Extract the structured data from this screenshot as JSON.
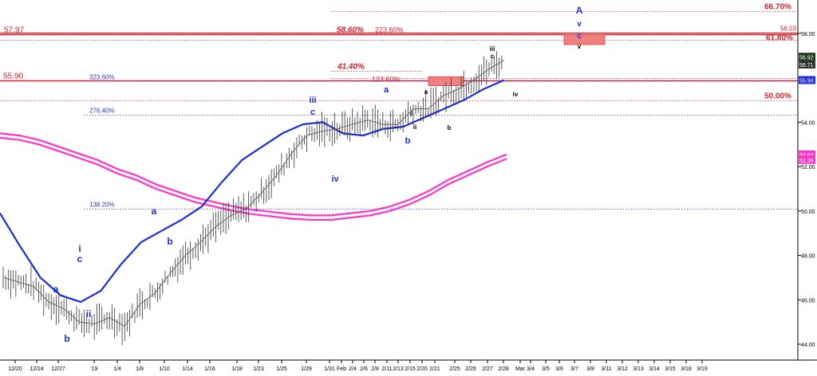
{
  "chart_data": {
    "type": "line",
    "title": "",
    "xlabel": "",
    "ylabel": "",
    "ylim": [
      43.3,
      61.4
    ],
    "x_ticks": [
      "12/20",
      "12/24",
      "12/27",
      "'19",
      "1/4",
      "1/8",
      "1/10",
      "1/14",
      "1/16",
      "1/18",
      "1/23",
      "1/25",
      "1/29",
      "1/31",
      "Feb",
      "2/4",
      "2/6",
      "2/8",
      "2/11",
      "2/13",
      "2/15",
      "2/20",
      "2/21",
      "2/25",
      "2/26",
      "2/27",
      "2/28",
      "Mar",
      "3/4",
      "3/5",
      "3/6",
      "3/7",
      "3/8",
      "3/11",
      "3/12",
      "3/13",
      "3/14",
      "3/15",
      "3/18",
      "3/19"
    ],
    "y_ticks": [
      "44.00",
      "46.00",
      "48.00",
      "50.00",
      "52.00",
      "54.00",
      "56.00",
      "58.00"
    ],
    "price_labels": {
      "last": "56.92",
      "sub": "56.71",
      "ma": "55.94",
      "slow_upper": "52.62",
      "slow_lower": "52.39"
    },
    "levels": [
      {
        "label": "57.97",
        "value": 57.97,
        "color": "#e0202a",
        "style": "solid"
      },
      {
        "label": "58.60%",
        "value": 57.97,
        "color": "#e0202a",
        "style": "dotted"
      },
      {
        "label": "223.60%",
        "value": 57.97,
        "color": "#e0202a",
        "style": "dotted"
      },
      {
        "label": "58.03",
        "value": 58.03,
        "color": "#e0202a",
        "style": "dotted"
      },
      {
        "label": "61.80%",
        "value": 57.7,
        "color": "#e0202a",
        "style": "dotted"
      },
      {
        "label": "66.70%",
        "value": 59.0,
        "color": "#e0202a",
        "style": "dotted"
      },
      {
        "label": "276.40%",
        "value": 59.9,
        "color": "#e0202a",
        "style": "dotted"
      },
      {
        "label": "41.40%",
        "value": 56.3,
        "color": "#e0202a",
        "style": "dotted"
      },
      {
        "label": "123.60%",
        "value": 56.0,
        "color": "#e0202a",
        "style": "dotted"
      },
      {
        "label": "55.90",
        "value": 55.9,
        "color": "#e0202a",
        "style": "solid"
      },
      {
        "label": "50.00%",
        "value": 55.0,
        "color": "#e0202a",
        "style": "dotted"
      },
      {
        "label": "323.60%",
        "value": 55.9,
        "color": "#3333cc",
        "style": "dotted"
      },
      {
        "label": "276.40%",
        "value": 54.35,
        "color": "#3333cc",
        "style": "dotted"
      },
      {
        "label": "138.20%",
        "value": 50.1,
        "color": "#3333cc",
        "style": "dotted"
      }
    ],
    "wave_labels": [
      "A",
      "v",
      "c",
      "v",
      "iii",
      "c",
      "iv",
      "iii",
      "c",
      "iv",
      "a",
      "b",
      "i",
      "ii",
      "a",
      "b",
      "i",
      "c",
      "ii",
      "a",
      "b",
      "a",
      "b",
      "i",
      "ii",
      "c",
      "b"
    ],
    "series": [
      {
        "color": "#ff33cc",
        "values": [
          53.5,
          53.4,
          53.2,
          52.9,
          52.6,
          52.3,
          51.9,
          51.6,
          51.2,
          50.9,
          50.6,
          50.4,
          50.2,
          50.05,
          49.95,
          49.85,
          49.8,
          49.8,
          49.9,
          50.0,
          50.2,
          50.5,
          50.9,
          51.4,
          51.8,
          52.2,
          52.55
        ]
      },
      {
        "color": "#ff33cc",
        "values": [
          53.3,
          53.2,
          53.0,
          52.7,
          52.4,
          52.1,
          51.7,
          51.4,
          51.0,
          50.7,
          50.4,
          50.2,
          50.0,
          49.85,
          49.75,
          49.65,
          49.6,
          49.6,
          49.7,
          49.8,
          50.0,
          50.3,
          50.7,
          51.2,
          51.6,
          52.0,
          52.35
        ]
      },
      {
        "color": "#1a2ee0",
        "values": [
          49.9,
          48.4,
          47.0,
          46.2,
          45.9,
          46.4,
          47.6,
          48.6,
          49.1,
          49.6,
          50.2,
          51.3,
          52.3,
          52.9,
          53.5,
          53.9,
          54.0,
          53.5,
          53.4,
          53.7,
          53.8,
          54.2,
          54.6,
          55.0,
          55.5,
          55.9
        ]
      },
      {
        "color": "#333333",
        "values": [
          47.0,
          46.8,
          46.6,
          45.9,
          45.6,
          45.0,
          44.9,
          45.2,
          44.8,
          45.8,
          46.3,
          47.2,
          48.0,
          48.6,
          49.3,
          49.8,
          50.1,
          50.8,
          51.6,
          52.6,
          53.4,
          53.6,
          53.7,
          53.9,
          54.1,
          53.9,
          53.9,
          54.6,
          54.6,
          55.2,
          55.5,
          55.9,
          56.4,
          56.8
        ]
      }
    ]
  }
}
